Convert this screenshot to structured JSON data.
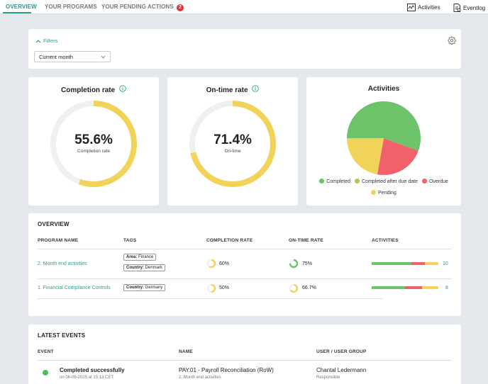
{
  "topnav": {
    "tabs": [
      {
        "label": "OVERVIEW",
        "active": true
      },
      {
        "label": "YOUR PROGRAMS",
        "active": false
      },
      {
        "label": "YOUR PENDING ACTIONS",
        "active": false,
        "badge": "2"
      }
    ],
    "links": [
      {
        "label": "Activities",
        "icon": "activity-chart-icon"
      },
      {
        "label": "Eventlog",
        "icon": "eventlog-icon"
      }
    ]
  },
  "filters": {
    "toggle_label": "Filters",
    "period_select": {
      "value": "Current month"
    }
  },
  "kpis": [
    {
      "title": "Completion rate",
      "value": "55.6%",
      "sub": "Completion rate",
      "fraction": 0.556
    },
    {
      "title": "On-time rate",
      "value": "71.4%",
      "sub": "On-time",
      "fraction": 0.714
    }
  ],
  "activities_chart": {
    "title": "Activities",
    "legend": [
      "Completed",
      "Completed after due date",
      "Overdue",
      "Pending"
    ]
  },
  "colors": {
    "accent": "#2a9d8f",
    "completed": "#6cc36a",
    "completed_late": "#a5cc5a",
    "overdue": "#f0626a",
    "pending": "#f2d35a",
    "ring_track": "#f0f0f0",
    "badge": "#d9363e"
  },
  "chart_data": {
    "type": "pie",
    "title": "Activities",
    "series": [
      {
        "name": "Completed",
        "value": 55.6
      },
      {
        "name": "Completed after due date",
        "value": 0
      },
      {
        "name": "Overdue",
        "value": 22.2
      },
      {
        "name": "Pending",
        "value": 22.2
      }
    ]
  },
  "overview": {
    "title": "OVERVIEW",
    "columns": [
      "PROGRAM NAME",
      "TAGS",
      "COMPLETION RATE",
      "ON-TIME RATE",
      "ACTIVITIES"
    ],
    "rows": [
      {
        "program": "2. Month end activities",
        "tags": [
          {
            "key": "Area:",
            "value": "Finance"
          },
          {
            "key": "Country:",
            "value": "Denmark"
          }
        ],
        "completion_rate": "60%",
        "completion_fraction": 0.6,
        "on_time_rate": "75%",
        "on_time_fraction": 0.75,
        "activity_split": {
          "completed": 6,
          "overdue": 2,
          "pending": 2
        },
        "activity_count": "10"
      },
      {
        "program": "1. Financial Compliance Controls",
        "tags": [
          {
            "key": "Country:",
            "value": "Germany"
          }
        ],
        "completion_rate": "50%",
        "completion_fraction": 0.5,
        "on_time_rate": "66.7%",
        "on_time_fraction": 0.667,
        "activity_split": {
          "completed": 4,
          "overdue": 2,
          "pending": 2
        },
        "activity_count": "8"
      }
    ]
  },
  "latest_events": {
    "title": "LATEST EVENTS",
    "columns": [
      "EVENT",
      "NAME",
      "USER / USER GROUP"
    ],
    "rows": [
      {
        "event": "Completed successfully",
        "event_time": "on 06-06-2025 at 15:13 CET",
        "name": "PAY.01 - Payroll Reconciliation (RoW)",
        "program": "2. Month end activities",
        "user": "Chantal Ledermann",
        "role": "Responsible"
      }
    ]
  }
}
